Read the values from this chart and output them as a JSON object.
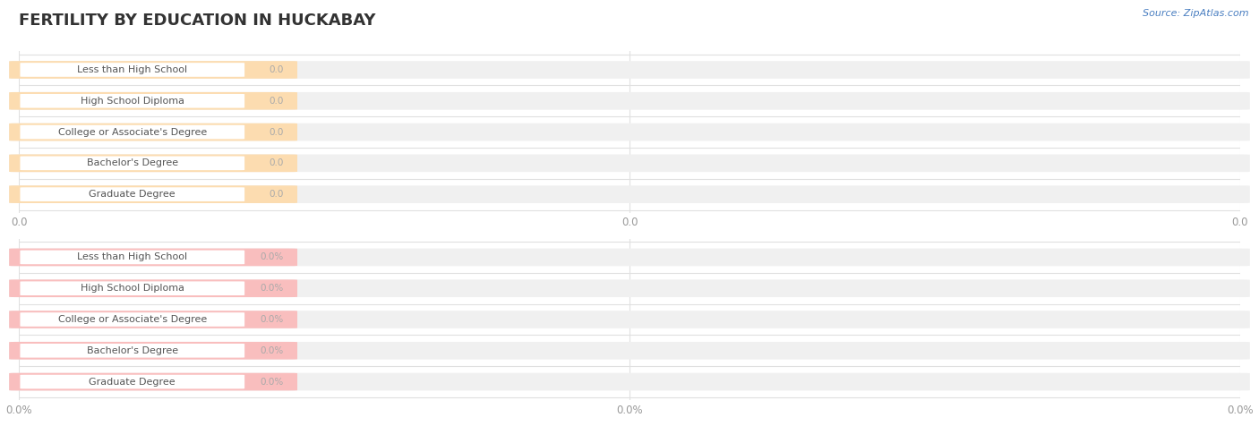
{
  "title": "FERTILITY BY EDUCATION IN HUCKABAY",
  "source": "Source: ZipAtlas.com",
  "categories": [
    "Less than High School",
    "High School Diploma",
    "College or Associate's Degree",
    "Bachelor's Degree",
    "Graduate Degree"
  ],
  "values_top": [
    0.0,
    0.0,
    0.0,
    0.0,
    0.0
  ],
  "values_bottom": [
    0.0,
    0.0,
    0.0,
    0.0,
    0.0
  ],
  "bar_bg_color_top": "#FCDCB0",
  "bar_bg_color_bottom": "#F9BEBE",
  "background_color": "#ffffff",
  "title_fontsize": 13,
  "bar_label_color": "#555555",
  "value_color_top": "#aaaaaa",
  "value_color_bottom": "#aaaaaa",
  "tick_color": "#999999",
  "grid_color": "#e0e0e0",
  "source_color": "#4a7fc1"
}
